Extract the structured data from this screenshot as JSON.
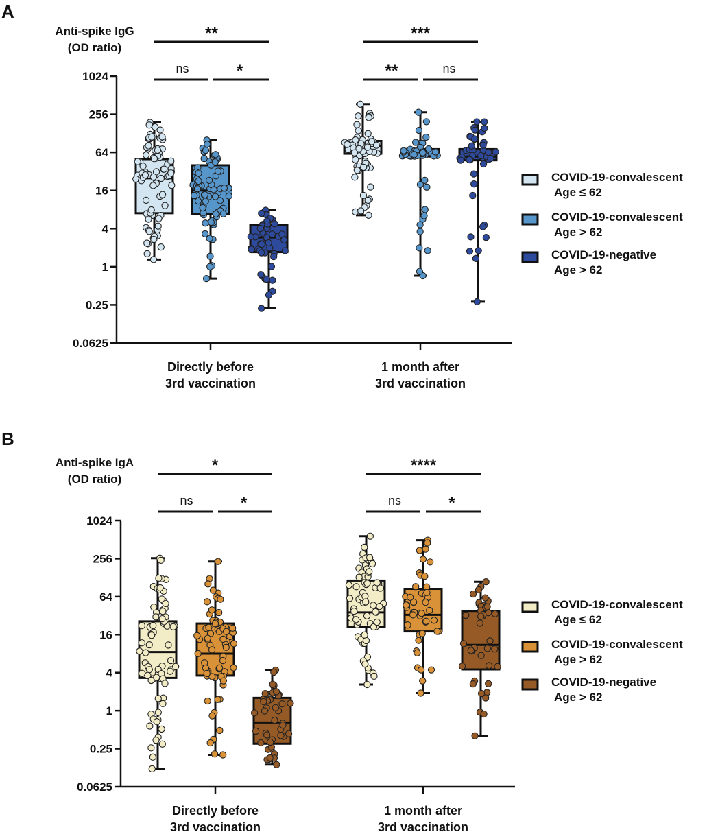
{
  "chart_data": [
    {
      "panel": "A",
      "type": "box",
      "ylabel": [
        "Anti-spike IgG",
        "(OD ratio)"
      ],
      "yscale": "log2",
      "ylim": [
        0.0625,
        1024
      ],
      "yticks": [
        {
          "v": 1024,
          "label": "1024"
        },
        {
          "v": 256,
          "label": "256"
        },
        {
          "v": 64,
          "label": "64"
        },
        {
          "v": 16,
          "label": "16"
        },
        {
          "v": 4,
          "label": "4"
        },
        {
          "v": 1,
          "label": "1"
        },
        {
          "v": 0.25,
          "label": "0.25"
        },
        {
          "v": 0.0625,
          "label": "0.0625"
        }
      ],
      "groups": [
        {
          "label": [
            "Directly before",
            "3rd vaccination"
          ]
        },
        {
          "label": [
            "1 month after",
            "3rd vaccination"
          ]
        }
      ],
      "legend": [
        {
          "line1": "COVID-19-convalescent",
          "line2": "Age ≤ 62",
          "color": "#d2e5f1"
        },
        {
          "line1": "COVID-19-convalescent",
          "line2": "Age > 62",
          "color": "#5796cb"
        },
        {
          "line1": "COVID-19-negative",
          "line2": "Age > 62",
          "color": "#2e4a9c"
        }
      ],
      "boxes": [
        {
          "group": 0,
          "series": 0,
          "min": 1.3,
          "q1": 7,
          "median": 25,
          "q3": 50,
          "max": 190
        },
        {
          "group": 0,
          "series": 1,
          "min": 0.65,
          "q1": 6.8,
          "median": 16,
          "q3": 40,
          "max": 100
        },
        {
          "group": 0,
          "series": 2,
          "min": 0.22,
          "q1": 1.7,
          "median": 2.9,
          "q3": 4.6,
          "max": 7.8
        },
        {
          "group": 1,
          "series": 0,
          "min": 6.5,
          "q1": 61,
          "median": 80,
          "q3": 97,
          "max": 370
        },
        {
          "group": 1,
          "series": 1,
          "min": 0.72,
          "q1": 55,
          "median": 62,
          "q3": 72,
          "max": 275
        },
        {
          "group": 1,
          "series": 2,
          "min": 0.28,
          "q1": 48,
          "median": 55,
          "q3": 72,
          "max": 195
        }
      ],
      "significance": [
        {
          "from": [
            0,
            0
          ],
          "to": [
            0,
            2
          ],
          "label": "**",
          "level": 2
        },
        {
          "from": [
            0,
            0
          ],
          "to": [
            0,
            1
          ],
          "label": "ns",
          "level": 1
        },
        {
          "from": [
            0,
            1
          ],
          "to": [
            0,
            2
          ],
          "label": "*",
          "level": 1
        },
        {
          "from": [
            1,
            0
          ],
          "to": [
            1,
            2
          ],
          "label": "***",
          "level": 2
        },
        {
          "from": [
            1,
            0
          ],
          "to": [
            1,
            1
          ],
          "label": "**",
          "level": 1
        },
        {
          "from": [
            1,
            1
          ],
          "to": [
            1,
            2
          ],
          "label": "ns",
          "level": 1
        }
      ],
      "points_n": [
        80,
        70,
        45,
        70,
        48,
        45
      ]
    },
    {
      "panel": "B",
      "type": "box",
      "ylabel": [
        "Anti-spike IgA",
        "(OD ratio)"
      ],
      "yscale": "log2",
      "ylim": [
        0.0625,
        1024
      ],
      "yticks": [
        {
          "v": 1024,
          "label": "1024"
        },
        {
          "v": 256,
          "label": "256"
        },
        {
          "v": 64,
          "label": "64"
        },
        {
          "v": 16,
          "label": "16"
        },
        {
          "v": 4,
          "label": "4"
        },
        {
          "v": 1,
          "label": "1"
        },
        {
          "v": 0.25,
          "label": "0.25"
        },
        {
          "v": 0.0625,
          "label": "0.0625"
        }
      ],
      "groups": [
        {
          "label": [
            "Directly before",
            "3rd vaccination"
          ]
        },
        {
          "label": [
            "1 month after",
            "3rd vaccination"
          ]
        }
      ],
      "legend": [
        {
          "line1": "COVID-19-convalescent",
          "line2": "Age ≤ 62",
          "color": "#f2ecc7"
        },
        {
          "line1": "COVID-19-convalescent",
          "line2": "Age > 62",
          "color": "#d99238"
        },
        {
          "line1": "COVID-19-negative",
          "line2": "Age > 62",
          "color": "#955a26"
        }
      ],
      "boxes": [
        {
          "group": 0,
          "series": 0,
          "min": 0.12,
          "q1": 3.3,
          "median": 8.5,
          "q3": 26,
          "max": 260
        },
        {
          "group": 0,
          "series": 1,
          "min": 0.2,
          "q1": 3.6,
          "median": 8,
          "q3": 24,
          "max": 230
        },
        {
          "group": 0,
          "series": 2,
          "min": 0.14,
          "q1": 0.3,
          "median": 0.65,
          "q3": 1.6,
          "max": 4.4
        },
        {
          "group": 1,
          "series": 0,
          "min": 2.6,
          "q1": 21,
          "median": 36,
          "q3": 115,
          "max": 580
        },
        {
          "group": 1,
          "series": 1,
          "min": 1.9,
          "q1": 18,
          "median": 33,
          "q3": 85,
          "max": 500
        },
        {
          "group": 1,
          "series": 2,
          "min": 0.4,
          "q1": 4.5,
          "median": 11,
          "q3": 38,
          "max": 110
        }
      ],
      "significance": [
        {
          "from": [
            0,
            0
          ],
          "to": [
            0,
            2
          ],
          "label": "*",
          "level": 2
        },
        {
          "from": [
            0,
            0
          ],
          "to": [
            0,
            1
          ],
          "label": "ns",
          "level": 1
        },
        {
          "from": [
            0,
            1
          ],
          "to": [
            0,
            2
          ],
          "label": "*",
          "level": 1
        },
        {
          "from": [
            1,
            0
          ],
          "to": [
            1,
            2
          ],
          "label": "****",
          "level": 2
        },
        {
          "from": [
            1,
            0
          ],
          "to": [
            1,
            1
          ],
          "label": "ns",
          "level": 1
        },
        {
          "from": [
            1,
            1
          ],
          "to": [
            1,
            2
          ],
          "label": "*",
          "level": 1
        }
      ],
      "points_n": [
        75,
        70,
        45,
        65,
        45,
        40
      ]
    }
  ]
}
